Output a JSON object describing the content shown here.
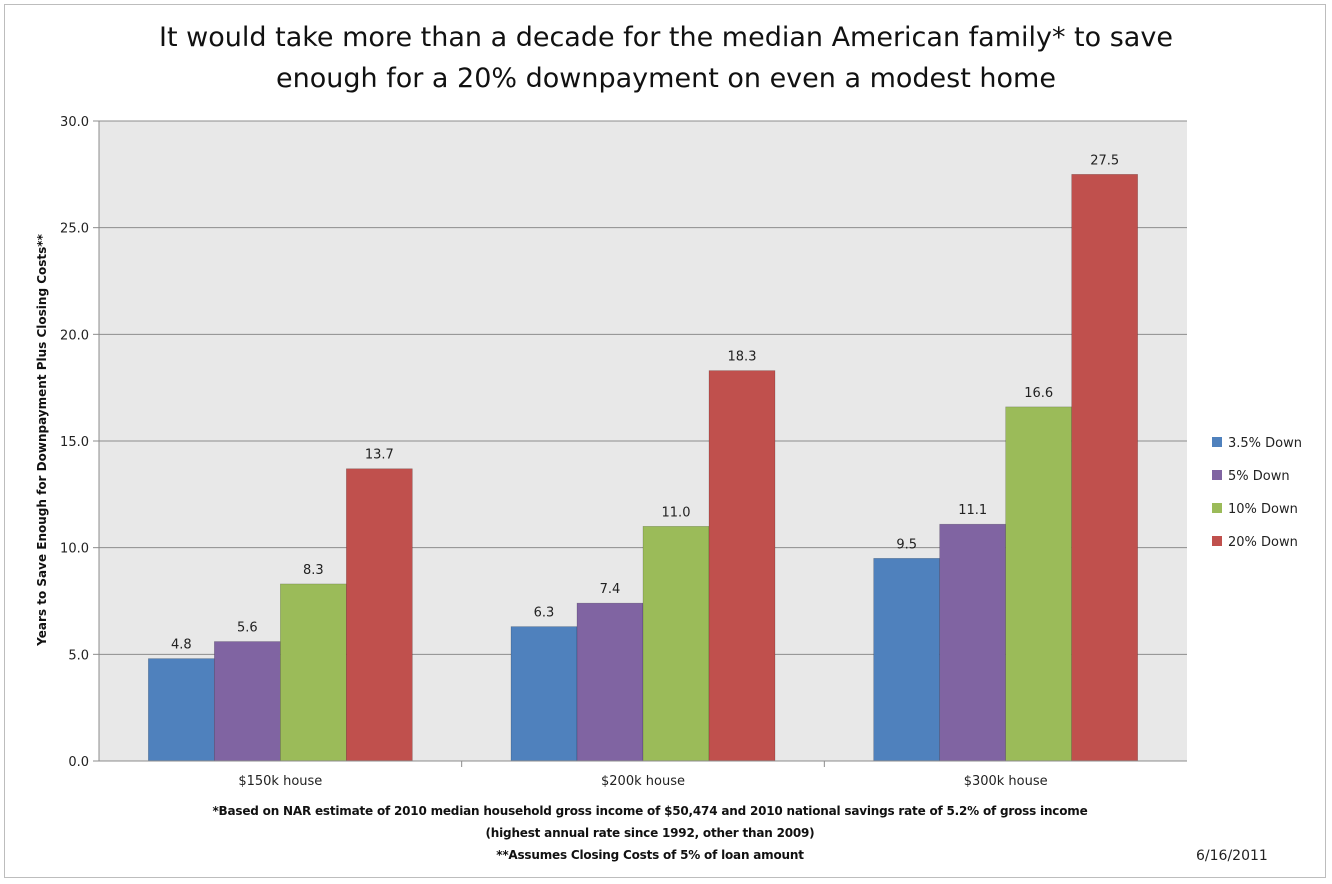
{
  "chart_data": {
    "type": "bar",
    "title_lines": [
      "It would take more than a decade for the median American family* to save",
      "enough for a 20% downpayment on even a modest home"
    ],
    "ylabel": "Years to Save Enough for Downpayment Plus Closing Costs**",
    "xlabel": "",
    "ylim": [
      0,
      30
    ],
    "yticks": [
      "0.0",
      "5.0",
      "10.0",
      "15.0",
      "20.0",
      "25.0",
      "30.0"
    ],
    "ytick_values": [
      0,
      5,
      10,
      15,
      20,
      25,
      30
    ],
    "grid": true,
    "legend_position": "right",
    "categories": [
      "$150k house",
      "$200k house",
      "$300k house"
    ],
    "series": [
      {
        "name": "3.5% Down",
        "color": "#4f81bd",
        "values": [
          4.8,
          6.3,
          9.5
        ],
        "labels": [
          "4.8",
          "6.3",
          "9.5"
        ]
      },
      {
        "name": "5% Down",
        "color": "#8064a2",
        "values": [
          5.6,
          7.4,
          11.1
        ],
        "labels": [
          "5.6",
          "7.4",
          "11.1"
        ]
      },
      {
        "name": "10% Down",
        "color": "#9bbb59",
        "values": [
          8.3,
          11.0,
          16.6
        ],
        "labels": [
          "8.3",
          "11.0",
          "16.6"
        ]
      },
      {
        "name": "20% Down",
        "color": "#c0504d",
        "values": [
          13.7,
          18.3,
          27.5
        ],
        "labels": [
          "13.7",
          "18.3",
          "27.5"
        ]
      }
    ],
    "plot_background": "#e8e8e8"
  },
  "footnotes": [
    "*Based on NAR estimate of 2010 median household gross income of $50,474 and 2010 national savings rate of 5.2% of gross income",
    "(highest annual rate since 1992, other than 2009)",
    "**Assumes Closing Costs of 5% of loan amount"
  ],
  "date": "6/16/2011"
}
